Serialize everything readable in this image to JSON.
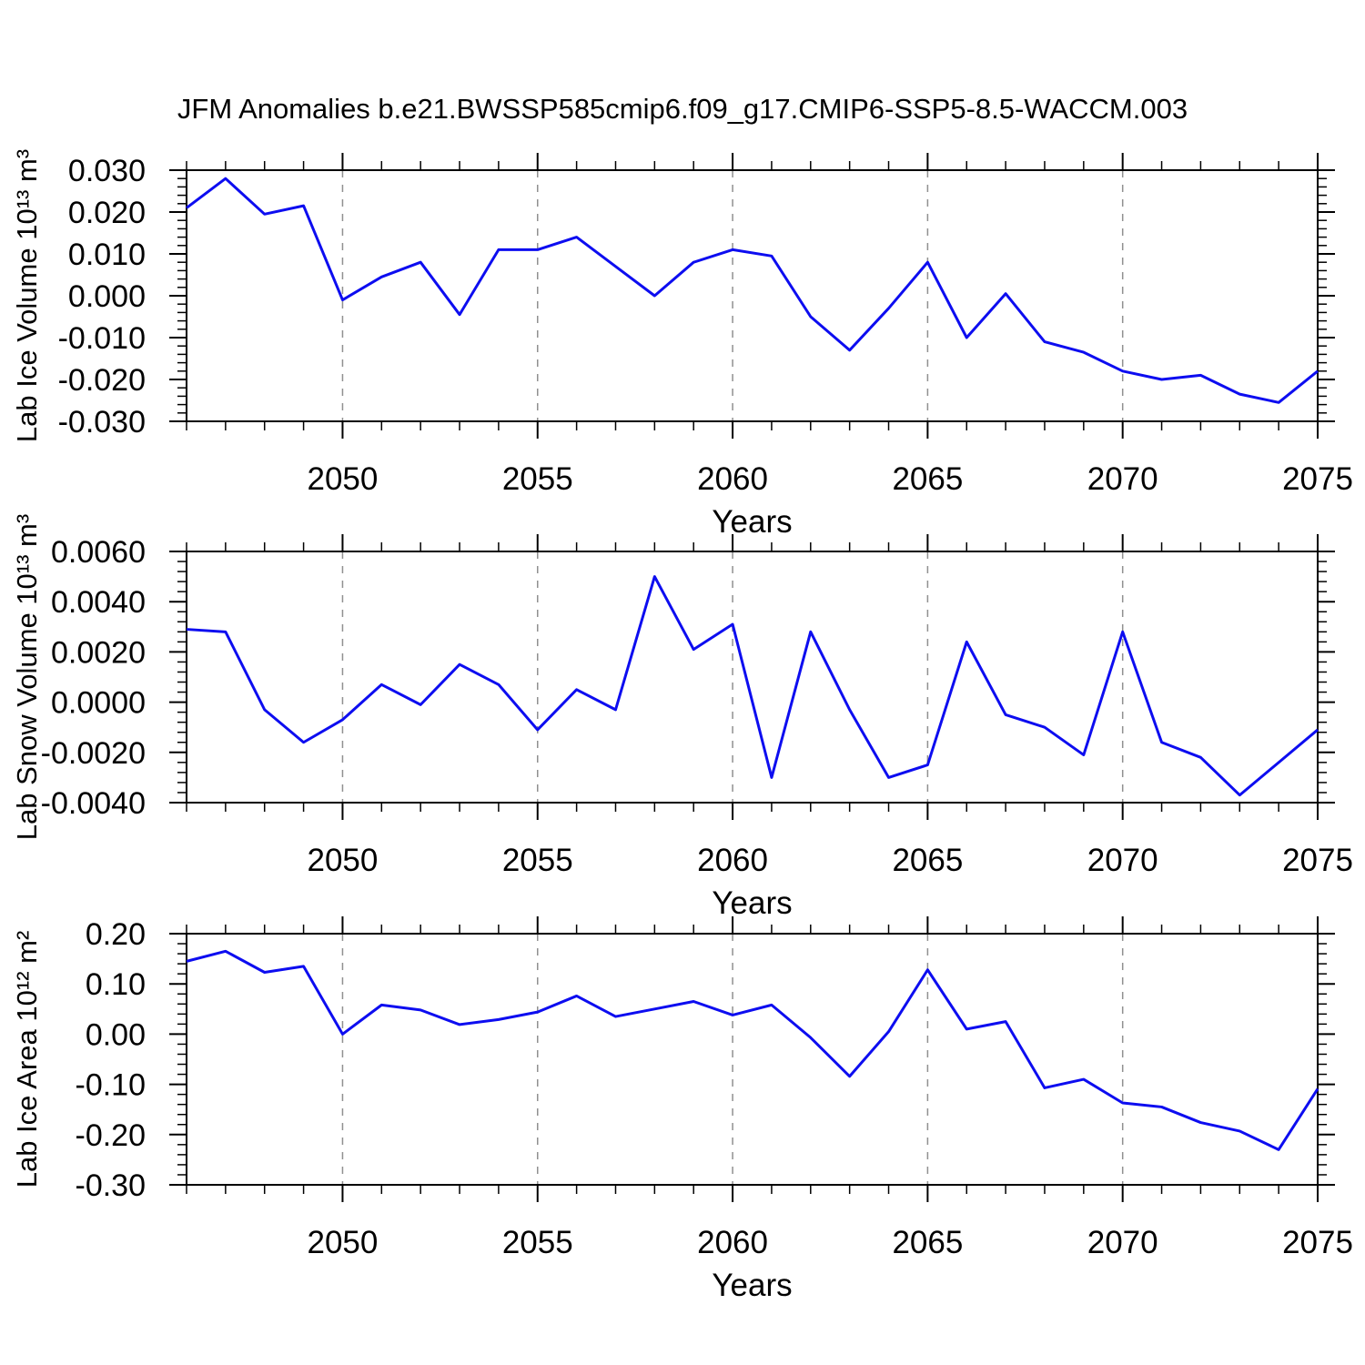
{
  "title": "JFM Anomalies b.e21.BWSSP585cmip6.f09_g17.CMIP6-SSP5-8.5-WACCM.003",
  "colors": {
    "line": "#0d0df0",
    "grid": "#909090",
    "axis": "#000000",
    "background": "#ffffff"
  },
  "chart_data": [
    {
      "type": "line",
      "panel": "lab-ice-volume",
      "ylabel": "Lab Ice Volume 10¹³ m³",
      "xlabel": "Years",
      "xlim": [
        2046,
        2075
      ],
      "ylim": [
        -0.03,
        0.03
      ],
      "ytick_step": 0.01,
      "yminor_step": 0.002,
      "ytick_labels": [
        "0.030",
        "0.020",
        "0.010",
        "0.000",
        "-0.010",
        "-0.020",
        "-0.030"
      ],
      "x_major": [
        2050,
        2055,
        2060,
        2065,
        2070,
        2075
      ],
      "xtick_labels": [
        "2050",
        "2055",
        "2060",
        "2065",
        "2070",
        "2075"
      ],
      "gridlines_at": [
        2050,
        2055,
        2060,
        2065,
        2070
      ],
      "grid": "vertical-dashed",
      "legend": "none",
      "x": [
        2046,
        2047,
        2048,
        2049,
        2050,
        2051,
        2052,
        2053,
        2054,
        2055,
        2056,
        2057,
        2058,
        2059,
        2060,
        2061,
        2062,
        2063,
        2064,
        2065,
        2066,
        2067,
        2068,
        2069,
        2070,
        2071,
        2072,
        2073,
        2074,
        2075
      ],
      "values": [
        0.021,
        0.028,
        0.0195,
        0.0215,
        -0.001,
        0.0045,
        0.008,
        -0.0045,
        0.011,
        0.011,
        0.014,
        0.007,
        0.0,
        0.008,
        0.011,
        0.0095,
        -0.005,
        -0.013,
        -0.003,
        0.008,
        -0.01,
        0.0005,
        -0.011,
        -0.0135,
        -0.018,
        -0.02,
        -0.019,
        -0.0235,
        -0.0255,
        -0.018
      ]
    },
    {
      "type": "line",
      "panel": "lab-snow-volume",
      "ylabel": "Lab Snow Volume 10¹³ m³",
      "xlabel": "Years",
      "xlim": [
        2046,
        2075
      ],
      "ylim": [
        -0.004,
        0.006
      ],
      "ytick_step": 0.002,
      "yminor_step": 0.0004,
      "ytick_labels": [
        "0.0060",
        "0.0040",
        "0.0020",
        "0.0000",
        "-0.0020",
        "-0.0040"
      ],
      "x_major": [
        2050,
        2055,
        2060,
        2065,
        2070,
        2075
      ],
      "xtick_labels": [
        "2050",
        "2055",
        "2060",
        "2065",
        "2070",
        "2075"
      ],
      "gridlines_at": [
        2050,
        2055,
        2060,
        2065,
        2070
      ],
      "grid": "vertical-dashed",
      "legend": "none",
      "x": [
        2046,
        2047,
        2048,
        2049,
        2050,
        2051,
        2052,
        2053,
        2054,
        2055,
        2056,
        2057,
        2058,
        2059,
        2060,
        2061,
        2062,
        2063,
        2064,
        2065,
        2066,
        2067,
        2068,
        2069,
        2070,
        2071,
        2072,
        2073,
        2074,
        2075
      ],
      "values": [
        0.0029,
        0.0028,
        -0.0003,
        -0.0016,
        -0.0007,
        0.0007,
        -0.0001,
        0.0015,
        0.0007,
        -0.0011,
        0.0005,
        -0.0003,
        0.005,
        0.0021,
        0.0031,
        -0.003,
        0.0028,
        -0.0003,
        -0.003,
        -0.0025,
        0.0024,
        -0.0005,
        -0.001,
        -0.0021,
        0.0028,
        -0.0016,
        -0.0022,
        -0.0037,
        -0.0024,
        -0.0011
      ]
    },
    {
      "type": "line",
      "panel": "lab-ice-area",
      "ylabel": "Lab Ice Area 10¹² m²",
      "xlabel": "Years",
      "xlim": [
        2046,
        2075
      ],
      "ylim": [
        -0.3,
        0.2
      ],
      "ytick_step": 0.1,
      "yminor_step": 0.02,
      "ytick_labels": [
        "0.20",
        "0.10",
        "0.00",
        "-0.10",
        "-0.20",
        "-0.30"
      ],
      "x_major": [
        2050,
        2055,
        2060,
        2065,
        2070,
        2075
      ],
      "xtick_labels": [
        "2050",
        "2055",
        "2060",
        "2065",
        "2070",
        "2075"
      ],
      "gridlines_at": [
        2050,
        2055,
        2060,
        2065,
        2070
      ],
      "grid": "vertical-dashed",
      "legend": "none",
      "x": [
        2046,
        2047,
        2048,
        2049,
        2050,
        2051,
        2052,
        2053,
        2054,
        2055,
        2056,
        2057,
        2058,
        2059,
        2060,
        2061,
        2062,
        2063,
        2064,
        2065,
        2066,
        2067,
        2068,
        2069,
        2070,
        2071,
        2072,
        2073,
        2074,
        2075
      ],
      "values": [
        0.145,
        0.165,
        0.123,
        0.135,
        0.0,
        0.058,
        0.048,
        0.019,
        0.029,
        0.044,
        0.076,
        0.035,
        0.05,
        0.065,
        0.038,
        0.058,
        -0.007,
        -0.084,
        0.005,
        0.128,
        0.01,
        0.025,
        -0.107,
        -0.09,
        -0.137,
        -0.145,
        -0.176,
        -0.193,
        -0.23,
        -0.109
      ]
    }
  ]
}
